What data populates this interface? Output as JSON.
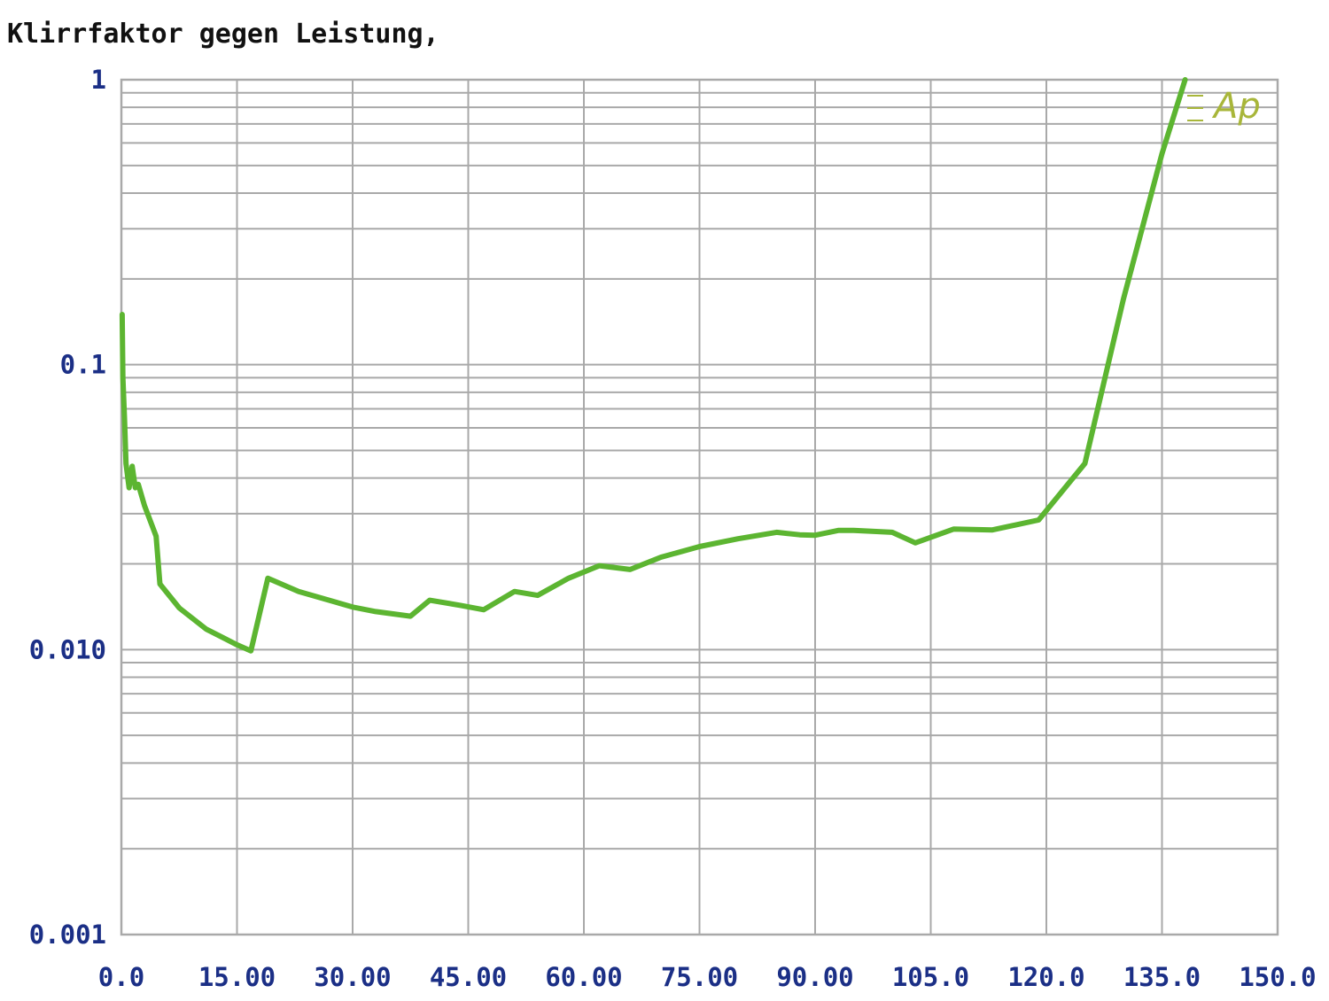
{
  "chart_data": {
    "type": "line",
    "title": "Klirrfaktor gegen Leistung,",
    "xlabel": "",
    "ylabel": "",
    "x_scale": "linear",
    "y_scale": "log",
    "xlim": [
      0,
      150
    ],
    "ylim": [
      0.001,
      1
    ],
    "grid": true,
    "x_ticks": [
      "0.0",
      "15.00",
      "30.00",
      "45.00",
      "60.00",
      "75.00",
      "90.00",
      "105.0",
      "120.0",
      "135.0",
      "150.0"
    ],
    "x_tick_values": [
      0,
      15,
      30,
      45,
      60,
      75,
      90,
      105,
      120,
      135,
      150
    ],
    "y_ticks": [
      "1",
      "0.1",
      "0.010",
      "0.001"
    ],
    "y_tick_values": [
      1,
      0.1,
      0.01,
      0.001
    ],
    "series": [
      {
        "color": "#5cb531",
        "x": [
          0.1,
          0.2,
          0.4,
          0.6,
          1.0,
          1.4,
          1.8,
          2.2,
          3.0,
          4.5,
          5.0,
          7.5,
          11,
          15,
          16.8,
          19,
          23,
          30,
          33,
          37.5,
          40,
          44,
          47,
          51,
          54,
          58,
          62,
          66,
          70,
          75,
          80,
          85,
          88,
          90,
          93,
          95,
          100,
          103,
          108,
          113,
          119,
          125,
          130,
          135,
          138
        ],
        "y": [
          0.15,
          0.09,
          0.065,
          0.045,
          0.037,
          0.044,
          0.037,
          0.038,
          0.032,
          0.025,
          0.017,
          0.014,
          0.0118,
          0.0104,
          0.0099,
          0.0178,
          0.016,
          0.0141,
          0.0136,
          0.0131,
          0.0149,
          0.0143,
          0.0138,
          0.016,
          0.0155,
          0.0178,
          0.0197,
          0.0191,
          0.0211,
          0.023,
          0.0245,
          0.0258,
          0.0253,
          0.0252,
          0.0262,
          0.0262,
          0.0258,
          0.0237,
          0.0265,
          0.0263,
          0.0285,
          0.045,
          0.17,
          0.55,
          1.0
        ]
      }
    ],
    "logo": "Ap",
    "colors": {
      "grid": "#a9a9a9",
      "axis_labels": "#1b2f86",
      "title": "#111111",
      "series": "#5cb531",
      "logo": "#a8b63a"
    }
  }
}
